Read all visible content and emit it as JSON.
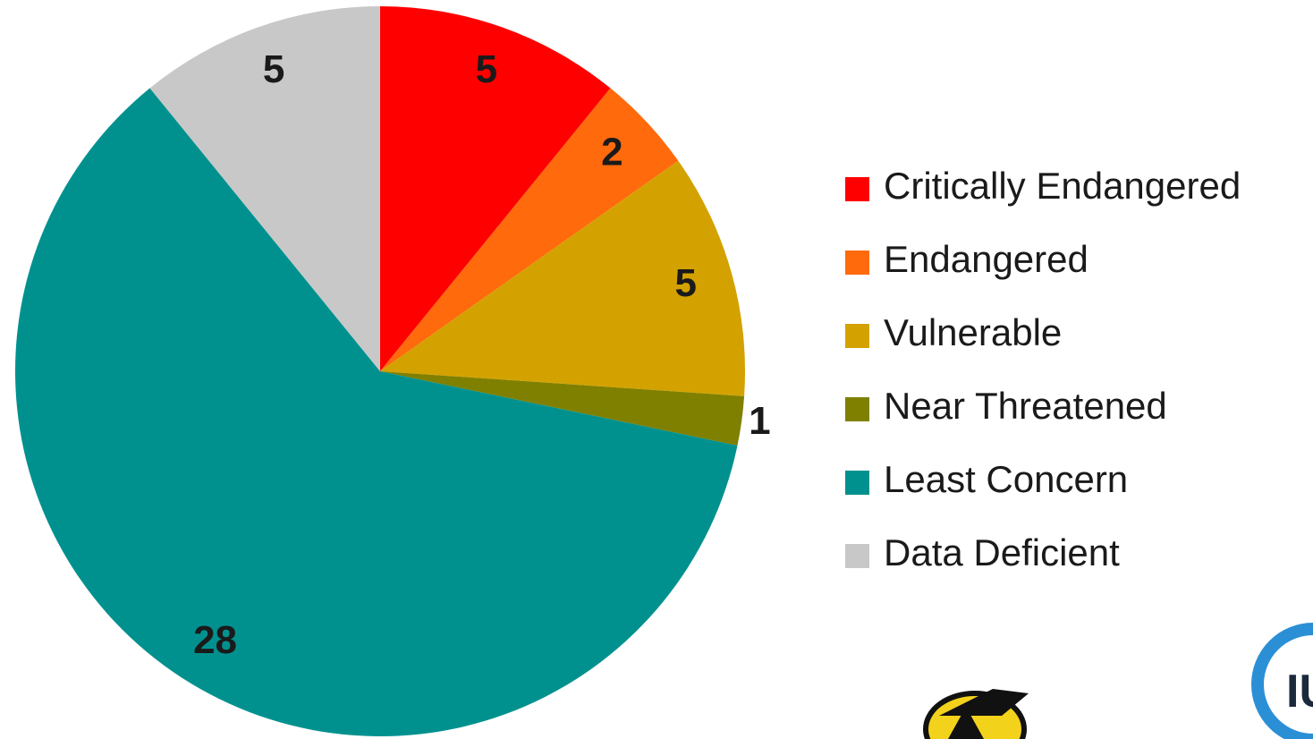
{
  "chart_data": {
    "type": "pie",
    "categories": [
      "Critically Endangered",
      "Endangered",
      "Vulnerable",
      "Near Threatened",
      "Least Concern",
      "Data Deficient"
    ],
    "values": [
      5,
      2,
      5,
      1,
      28,
      5
    ],
    "colors": [
      "#ff0000",
      "#ff6a0d",
      "#d4a200",
      "#7f8000",
      "#00918f",
      "#c8c8c8"
    ],
    "legend": "right"
  },
  "logo_text": "IU"
}
